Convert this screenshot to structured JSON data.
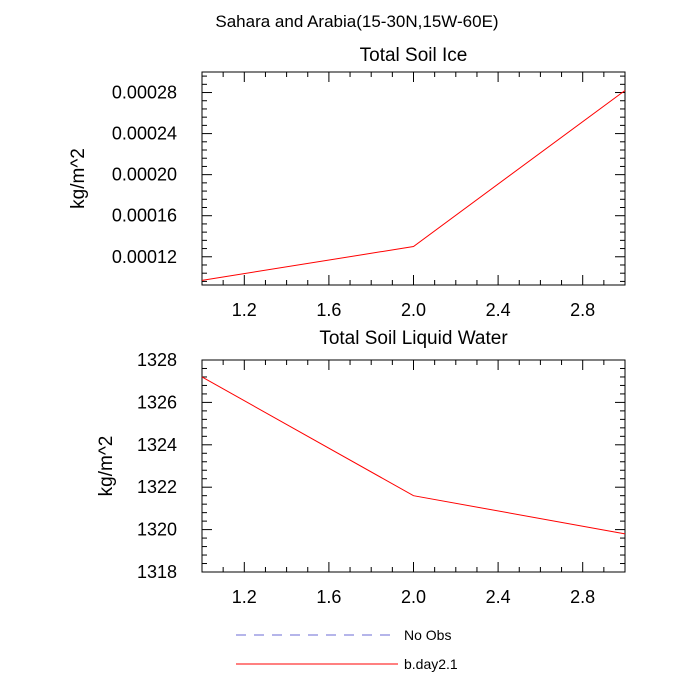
{
  "title": "Sahara and Arabia(15-30N,15W-60E)",
  "colors": {
    "series_line": "#ff0000",
    "obs_line": "#6b6bd6",
    "axis": "#000000"
  },
  "legend": [
    {
      "label": "No Obs",
      "style": "dashed",
      "color": "#6b6bd6"
    },
    {
      "label": "b.day2.1",
      "style": "solid",
      "color": "#ff0000"
    }
  ],
  "chart_data": [
    {
      "type": "line",
      "title": "Total Soil Ice",
      "ylabel": "kg/m^2",
      "xlabel": "",
      "xlim": [
        1.0,
        3.0
      ],
      "ylim": [
        9.25e-05,
        0.0003
      ],
      "xticks": [
        1.2,
        1.6,
        2.0,
        2.4,
        2.8
      ],
      "xtick_labels": [
        "1.2",
        "1.6",
        "2.0",
        "2.4",
        "2.8"
      ],
      "yticks": [
        0.00012,
        0.00016,
        0.0002,
        0.00024,
        0.00028
      ],
      "ytick_labels": [
        "0.00012",
        "0.00016",
        "0.00020",
        "0.00024",
        "0.00028"
      ],
      "series": [
        {
          "name": "b.day2.1",
          "x": [
            1.0,
            2.0,
            3.0
          ],
          "y": [
            9.7e-05,
            0.00013,
            0.000282
          ]
        }
      ]
    },
    {
      "type": "line",
      "title": "Total Soil Liquid Water",
      "ylabel": "kg/m^2",
      "xlabel": "",
      "xlim": [
        1.0,
        3.0
      ],
      "ylim": [
        1318,
        1328
      ],
      "xticks": [
        1.2,
        1.6,
        2.0,
        2.4,
        2.8
      ],
      "xtick_labels": [
        "1.2",
        "1.6",
        "2.0",
        "2.4",
        "2.8"
      ],
      "yticks": [
        1318,
        1320,
        1322,
        1324,
        1326,
        1328
      ],
      "ytick_labels": [
        "1318",
        "1320",
        "1322",
        "1324",
        "1326",
        "1328"
      ],
      "series": [
        {
          "name": "b.day2.1",
          "x": [
            1.0,
            2.0,
            3.0
          ],
          "y": [
            1327.2,
            1321.6,
            1319.8
          ]
        }
      ]
    }
  ]
}
